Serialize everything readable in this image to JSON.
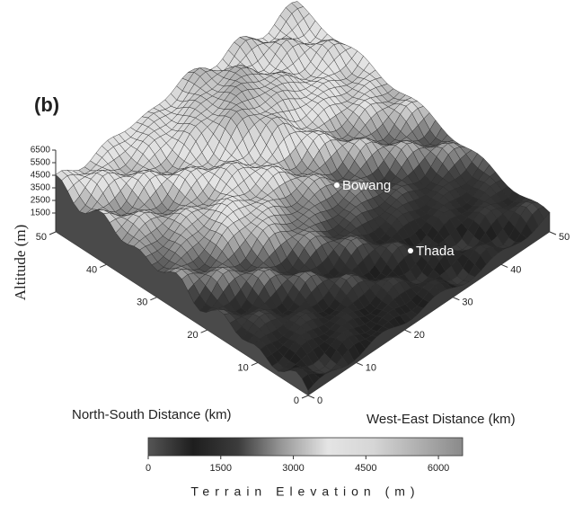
{
  "chart_data": {
    "type": "surface",
    "title": "(b)",
    "zlabel": "Altitude (m)",
    "xlabel": "North-South Distance (km)",
    "ylabel": "West-East Distance (km)",
    "xlim": [
      0,
      50
    ],
    "xticks": [
      0,
      10,
      20,
      30,
      40,
      50
    ],
    "ylim": [
      0,
      50
    ],
    "yticks": [
      0,
      10,
      20,
      30,
      40,
      50
    ],
    "zlim": [
      0,
      6500
    ],
    "zticks": [
      1500,
      2500,
      3500,
      4500,
      5500,
      6500
    ],
    "annotations": [
      "Bowang",
      "Thada"
    ],
    "colorbar": {
      "label": "Terrain Elevation (m)",
      "lim": [
        0,
        6500
      ],
      "ticks": [
        0,
        1500,
        3000,
        4500,
        6000
      ],
      "colors": [
        "#555555",
        "#1e1e1e",
        "#3c3c3c",
        "#9a9a9a",
        "#e4e4e4",
        "#d6d6d6",
        "#b0b0b0",
        "#8a8a8a"
      ]
    }
  }
}
